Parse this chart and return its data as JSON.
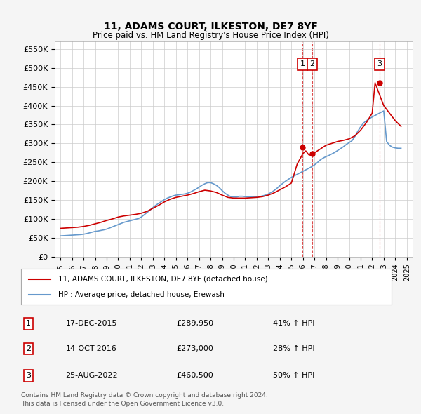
{
  "title": "11, ADAMS COURT, ILKESTON, DE7 8YF",
  "subtitle": "Price paid vs. HM Land Registry's House Price Index (HPI)",
  "legend_line1": "11, ADAMS COURT, ILKESTON, DE7 8YF (detached house)",
  "legend_line2": "HPI: Average price, detached house, Erewash",
  "footnote1": "Contains HM Land Registry data © Crown copyright and database right 2024.",
  "footnote2": "This data is licensed under the Open Government Licence v3.0.",
  "ylim": [
    0,
    570000
  ],
  "yticks": [
    0,
    50000,
    100000,
    150000,
    200000,
    250000,
    300000,
    350000,
    400000,
    450000,
    500000,
    550000
  ],
  "ytick_labels": [
    "£0",
    "£50K",
    "£100K",
    "£150K",
    "£200K",
    "£250K",
    "£300K",
    "£350K",
    "£400K",
    "£450K",
    "£500K",
    "£550K"
  ],
  "xlim": [
    1994.5,
    2025.5
  ],
  "sale_events": [
    {
      "num": 1,
      "date": "17-DEC-2015",
      "price": 289950,
      "hpi_pct": "41%",
      "arrow": "↑",
      "x": 2015.96
    },
    {
      "num": 2,
      "date": "14-OCT-2016",
      "price": 273000,
      "hpi_pct": "28%",
      "arrow": "↑",
      "x": 2016.79
    },
    {
      "num": 3,
      "date": "25-AUG-2022",
      "price": 460500,
      "hpi_pct": "50%",
      "arrow": "↑",
      "x": 2022.65
    }
  ],
  "red_color": "#cc0000",
  "blue_color": "#6699cc",
  "bg_color": "#f5f5f5",
  "plot_bg": "#ffffff",
  "grid_color": "#cccccc",
  "hpi_years": [
    1995,
    1995.25,
    1995.5,
    1995.75,
    1996,
    1996.25,
    1996.5,
    1996.75,
    1997,
    1997.25,
    1997.5,
    1997.75,
    1998,
    1998.25,
    1998.5,
    1998.75,
    1999,
    1999.25,
    1999.5,
    1999.75,
    2000,
    2000.25,
    2000.5,
    2000.75,
    2001,
    2001.25,
    2001.5,
    2001.75,
    2002,
    2002.25,
    2002.5,
    2002.75,
    2003,
    2003.25,
    2003.5,
    2003.75,
    2004,
    2004.25,
    2004.5,
    2004.75,
    2005,
    2005.25,
    2005.5,
    2005.75,
    2006,
    2006.25,
    2006.5,
    2006.75,
    2007,
    2007.25,
    2007.5,
    2007.75,
    2008,
    2008.25,
    2008.5,
    2008.75,
    2009,
    2009.25,
    2009.5,
    2009.75,
    2010,
    2010.25,
    2010.5,
    2010.75,
    2011,
    2011.25,
    2011.5,
    2011.75,
    2012,
    2012.25,
    2012.5,
    2012.75,
    2013,
    2013.25,
    2013.5,
    2013.75,
    2014,
    2014.25,
    2014.5,
    2014.75,
    2015,
    2015.25,
    2015.5,
    2015.75,
    2016,
    2016.25,
    2016.5,
    2016.75,
    2017,
    2017.25,
    2017.5,
    2017.75,
    2018,
    2018.25,
    2018.5,
    2018.75,
    2019,
    2019.25,
    2019.5,
    2019.75,
    2020,
    2020.25,
    2020.5,
    2020.75,
    2021,
    2021.25,
    2021.5,
    2021.75,
    2022,
    2022.25,
    2022.5,
    2022.75,
    2023,
    2023.25,
    2023.5,
    2023.75,
    2024,
    2024.25,
    2024.5
  ],
  "hpi_values": [
    55000,
    55500,
    56000,
    56500,
    57000,
    57500,
    58000,
    58500,
    59500,
    61000,
    63000,
    65000,
    67000,
    68000,
    69500,
    71000,
    73000,
    76000,
    79000,
    82000,
    85000,
    88000,
    91000,
    93000,
    95000,
    97000,
    99000,
    101000,
    105000,
    111000,
    117000,
    123000,
    130000,
    136000,
    141000,
    146000,
    151000,
    155000,
    158000,
    161000,
    163000,
    164000,
    165000,
    166000,
    168000,
    171000,
    175000,
    179000,
    184000,
    189000,
    193000,
    196000,
    196000,
    193000,
    189000,
    183000,
    175000,
    168000,
    163000,
    159000,
    158000,
    158000,
    160000,
    160000,
    159000,
    158000,
    158000,
    158000,
    158000,
    159000,
    161000,
    163000,
    166000,
    170000,
    175000,
    181000,
    188000,
    194000,
    200000,
    205000,
    210000,
    214000,
    218000,
    222000,
    226000,
    230000,
    234000,
    238000,
    243000,
    249000,
    256000,
    261000,
    265000,
    268000,
    272000,
    276000,
    281000,
    286000,
    291000,
    297000,
    302000,
    307000,
    318000,
    332000,
    344000,
    354000,
    360000,
    365000,
    370000,
    374000,
    378000,
    382000,
    386000,
    305000,
    295000,
    290000,
    288000,
    287000,
    287000
  ],
  "property_years": [
    1995,
    1995.5,
    1996,
    1996.5,
    1997,
    1997.5,
    1998,
    1998.5,
    1999,
    1999.5,
    2000,
    2000.5,
    2001,
    2001.5,
    2002,
    2002.5,
    2003,
    2003.5,
    2004,
    2004.5,
    2005,
    2005.5,
    2006,
    2006.5,
    2007,
    2007.5,
    2008,
    2008.5,
    2009,
    2009.5,
    2010,
    2010.5,
    2011,
    2011.5,
    2012,
    2012.5,
    2013,
    2013.5,
    2014,
    2014.5,
    2015,
    2015.5,
    2016,
    2016.25,
    2016.5,
    2016.75,
    2017,
    2017.5,
    2018,
    2018.5,
    2019,
    2019.5,
    2020,
    2020.5,
    2021,
    2021.5,
    2022,
    2022.25,
    2022.5,
    2022.75,
    2023,
    2023.5,
    2024,
    2024.5
  ],
  "property_values": [
    75000,
    76000,
    77000,
    78000,
    80000,
    83000,
    87000,
    91000,
    96000,
    100000,
    105000,
    108000,
    110000,
    112000,
    115000,
    120000,
    128000,
    136000,
    145000,
    152000,
    157000,
    160000,
    163000,
    167000,
    172000,
    176000,
    174000,
    170000,
    163000,
    157000,
    155000,
    155000,
    155000,
    156000,
    157000,
    159000,
    163000,
    169000,
    177000,
    185000,
    195000,
    245000,
    273000,
    280000,
    270000,
    268000,
    275000,
    285000,
    295000,
    300000,
    305000,
    308000,
    312000,
    320000,
    335000,
    355000,
    380000,
    460500,
    440000,
    420000,
    400000,
    380000,
    360000,
    345000
  ]
}
